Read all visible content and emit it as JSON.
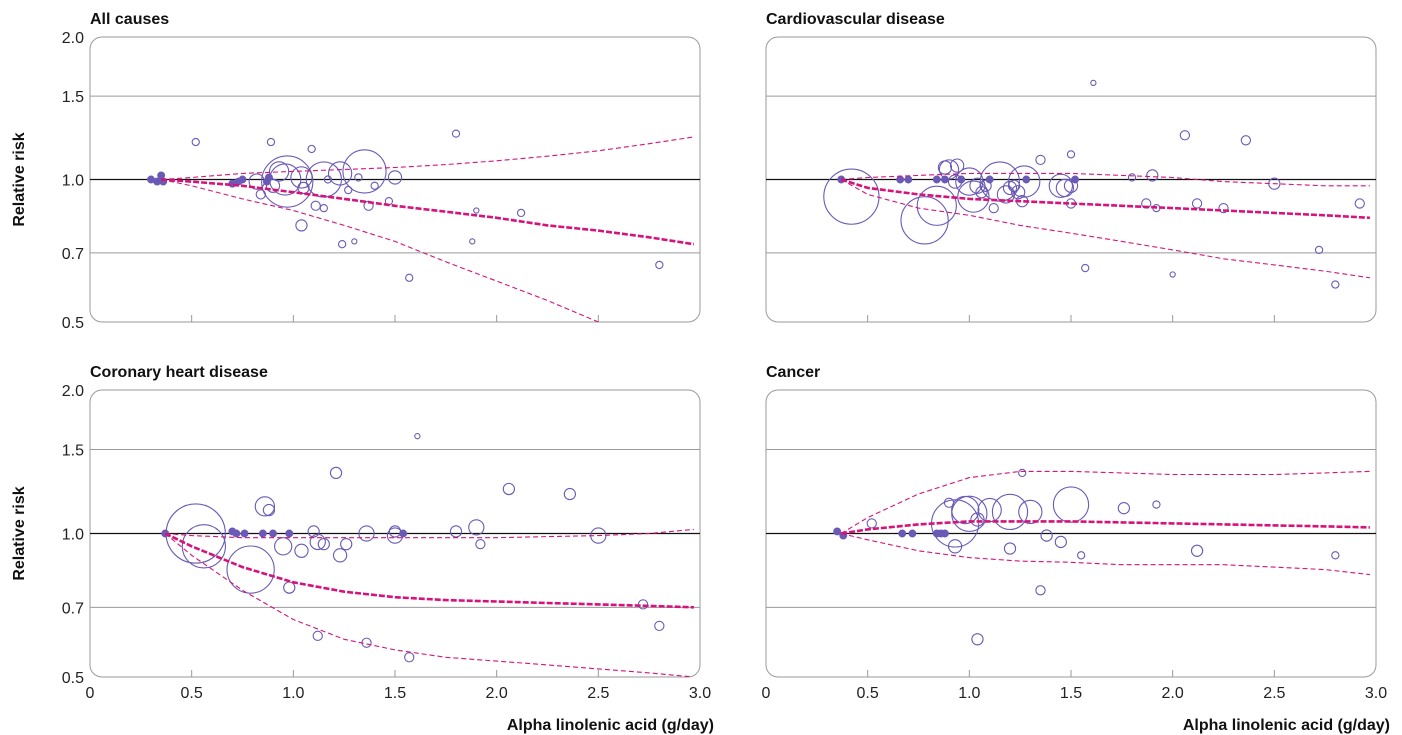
{
  "chart_data": [
    {
      "type": "scatter",
      "title": "All causes",
      "ylabel": "Relative risk",
      "xlabel": "",
      "xlim": [
        0,
        3.0
      ],
      "ylim": [
        0.5,
        2.0
      ],
      "y_scale": "log",
      "yticks": [
        0.5,
        0.7,
        1.0,
        1.5,
        2.0
      ],
      "ytick_labels": [
        "0.5",
        "0.7",
        "1.0",
        "1.5",
        "2.0"
      ],
      "xticks": [
        0.5,
        1.0,
        1.5,
        2.0,
        2.5
      ],
      "xtick_labels": [],
      "grid": true,
      "reference_line": 1.0,
      "points": [
        {
          "x": 0.3,
          "y": 1.0,
          "s": 2,
          "filled": true
        },
        {
          "x": 0.33,
          "y": 0.99,
          "s": 2,
          "filled": true
        },
        {
          "x": 0.35,
          "y": 1.02,
          "s": 2,
          "filled": true
        },
        {
          "x": 0.36,
          "y": 0.99,
          "s": 2,
          "filled": true
        },
        {
          "x": 0.52,
          "y": 1.2,
          "s": 2
        },
        {
          "x": 0.7,
          "y": 0.98,
          "s": 2,
          "filled": true
        },
        {
          "x": 0.73,
          "y": 0.99,
          "s": 2,
          "filled": true
        },
        {
          "x": 0.75,
          "y": 1.0,
          "s": 2,
          "filled": true
        },
        {
          "x": 0.82,
          "y": 0.99,
          "s": 6
        },
        {
          "x": 0.84,
          "y": 0.93,
          "s": 3
        },
        {
          "x": 0.87,
          "y": 0.99,
          "s": 2,
          "filled": true
        },
        {
          "x": 0.88,
          "y": 1.01,
          "s": 2,
          "filled": true
        },
        {
          "x": 0.89,
          "y": 1.2,
          "s": 2
        },
        {
          "x": 0.9,
          "y": 0.97,
          "s": 5
        },
        {
          "x": 0.93,
          "y": 1.04,
          "s": 8
        },
        {
          "x": 0.96,
          "y": 1.0,
          "s": 14
        },
        {
          "x": 0.97,
          "y": 0.99,
          "s": 24
        },
        {
          "x": 1.04,
          "y": 1.01,
          "s": 9
        },
        {
          "x": 1.04,
          "y": 0.8,
          "s": 4
        },
        {
          "x": 1.05,
          "y": 0.96,
          "s": 4
        },
        {
          "x": 1.09,
          "y": 1.16,
          "s": 2
        },
        {
          "x": 1.11,
          "y": 0.88,
          "s": 3
        },
        {
          "x": 1.15,
          "y": 1.0,
          "s": 16
        },
        {
          "x": 1.15,
          "y": 0.87,
          "s": 2
        },
        {
          "x": 1.17,
          "y": 1.0,
          "s": 2
        },
        {
          "x": 1.23,
          "y": 1.03,
          "s": 10
        },
        {
          "x": 1.24,
          "y": 0.73,
          "s": 2
        },
        {
          "x": 1.27,
          "y": 0.95,
          "s": 2
        },
        {
          "x": 1.3,
          "y": 0.74,
          "s": 1
        },
        {
          "x": 1.32,
          "y": 1.01,
          "s": 2
        },
        {
          "x": 1.35,
          "y": 1.04,
          "s": 20
        },
        {
          "x": 1.37,
          "y": 0.88,
          "s": 3
        },
        {
          "x": 1.4,
          "y": 0.97,
          "s": 2
        },
        {
          "x": 1.47,
          "y": 0.9,
          "s": 2
        },
        {
          "x": 1.5,
          "y": 1.01,
          "s": 5
        },
        {
          "x": 1.57,
          "y": 0.62,
          "s": 2
        },
        {
          "x": 1.8,
          "y": 1.25,
          "s": 2
        },
        {
          "x": 1.88,
          "y": 0.74,
          "s": 1
        },
        {
          "x": 1.9,
          "y": 0.86,
          "s": 1
        },
        {
          "x": 2.12,
          "y": 0.85,
          "s": 2
        },
        {
          "x": 2.8,
          "y": 0.66,
          "s": 2
        }
      ],
      "curves": {
        "x": [
          0.35,
          0.5,
          0.75,
          1.0,
          1.25,
          1.5,
          1.75,
          2.0,
          2.25,
          2.5,
          2.75,
          2.97
        ],
        "estimate": [
          1.0,
          0.99,
          0.97,
          0.94,
          0.91,
          0.88,
          0.855,
          0.83,
          0.8,
          0.78,
          0.755,
          0.73
        ],
        "lower": [
          1.0,
          0.97,
          0.91,
          0.86,
          0.8,
          0.74,
          0.67,
          0.61,
          0.555,
          0.5,
          0.46,
          0.42
        ],
        "upper": [
          1.0,
          1.01,
          1.03,
          1.04,
          1.05,
          1.06,
          1.075,
          1.095,
          1.12,
          1.15,
          1.19,
          1.23
        ]
      }
    },
    {
      "type": "scatter",
      "title": "Cardiovascular disease",
      "ylabel": "",
      "xlabel": "",
      "xlim": [
        0,
        3.0
      ],
      "ylim": [
        0.5,
        2.0
      ],
      "y_scale": "log",
      "yticks": [
        0.5,
        0.7,
        1.0,
        1.5,
        2.0
      ],
      "ytick_labels": [],
      "xticks": [
        0.5,
        1.0,
        1.5,
        2.0,
        2.5
      ],
      "xtick_labels": [],
      "grid": true,
      "reference_line": 1.0,
      "points": [
        {
          "x": 0.37,
          "y": 1.0,
          "s": 2,
          "filled": true
        },
        {
          "x": 0.42,
          "y": 0.92,
          "s": 26
        },
        {
          "x": 0.66,
          "y": 1.0,
          "s": 2,
          "filled": true
        },
        {
          "x": 0.7,
          "y": 1.0,
          "s": 2,
          "filled": true
        },
        {
          "x": 0.78,
          "y": 0.82,
          "s": 22
        },
        {
          "x": 0.84,
          "y": 0.88,
          "s": 18
        },
        {
          "x": 0.84,
          "y": 1.0,
          "s": 2,
          "filled": true
        },
        {
          "x": 0.88,
          "y": 1.06,
          "s": 5
        },
        {
          "x": 0.88,
          "y": 1.0,
          "s": 2,
          "filled": true
        },
        {
          "x": 0.9,
          "y": 1.05,
          "s": 8
        },
        {
          "x": 0.93,
          "y": 0.99,
          "s": 5
        },
        {
          "x": 0.94,
          "y": 1.07,
          "s": 5
        },
        {
          "x": 0.96,
          "y": 1.0,
          "s": 2,
          "filled": true
        },
        {
          "x": 1.0,
          "y": 0.99,
          "s": 12
        },
        {
          "x": 1.02,
          "y": 0.92,
          "s": 14
        },
        {
          "x": 1.04,
          "y": 0.97,
          "s": 6
        },
        {
          "x": 1.06,
          "y": 0.94,
          "s": 4
        },
        {
          "x": 1.08,
          "y": 0.97,
          "s": 4
        },
        {
          "x": 1.1,
          "y": 1.0,
          "s": 2,
          "filled": true
        },
        {
          "x": 1.12,
          "y": 0.87,
          "s": 3
        },
        {
          "x": 1.15,
          "y": 0.99,
          "s": 18
        },
        {
          "x": 1.18,
          "y": 0.93,
          "s": 7
        },
        {
          "x": 1.2,
          "y": 0.96,
          "s": 5
        },
        {
          "x": 1.22,
          "y": 0.97,
          "s": 4
        },
        {
          "x": 1.24,
          "y": 0.94,
          "s": 5
        },
        {
          "x": 1.26,
          "y": 0.9,
          "s": 4
        },
        {
          "x": 1.27,
          "y": 0.99,
          "s": 14
        },
        {
          "x": 1.28,
          "y": 1.0,
          "s": 2,
          "filled": true
        },
        {
          "x": 1.35,
          "y": 1.1,
          "s": 3
        },
        {
          "x": 1.45,
          "y": 0.97,
          "s": 10
        },
        {
          "x": 1.47,
          "y": 0.96,
          "s": 7
        },
        {
          "x": 1.5,
          "y": 0.97,
          "s": 5
        },
        {
          "x": 1.5,
          "y": 1.13,
          "s": 2
        },
        {
          "x": 1.5,
          "y": 0.89,
          "s": 3
        },
        {
          "x": 1.52,
          "y": 1.0,
          "s": 2,
          "filled": true
        },
        {
          "x": 1.57,
          "y": 0.65,
          "s": 2
        },
        {
          "x": 1.61,
          "y": 1.6,
          "s": 1
        },
        {
          "x": 1.8,
          "y": 1.01,
          "s": 2
        },
        {
          "x": 1.87,
          "y": 0.89,
          "s": 3
        },
        {
          "x": 1.9,
          "y": 1.02,
          "s": 4
        },
        {
          "x": 1.92,
          "y": 0.87,
          "s": 2
        },
        {
          "x": 2.0,
          "y": 0.63,
          "s": 1
        },
        {
          "x": 2.06,
          "y": 1.24,
          "s": 3
        },
        {
          "x": 2.12,
          "y": 0.89,
          "s": 3
        },
        {
          "x": 2.25,
          "y": 0.87,
          "s": 3
        },
        {
          "x": 2.36,
          "y": 1.21,
          "s": 3
        },
        {
          "x": 2.5,
          "y": 0.98,
          "s": 4
        },
        {
          "x": 2.72,
          "y": 0.71,
          "s": 2
        },
        {
          "x": 2.8,
          "y": 0.6,
          "s": 2
        },
        {
          "x": 2.92,
          "y": 0.89,
          "s": 3
        }
      ],
      "curves": {
        "x": [
          0.37,
          0.5,
          0.75,
          1.0,
          1.25,
          1.5,
          1.75,
          2.0,
          2.25,
          2.5,
          2.75,
          2.97
        ],
        "estimate": [
          1.0,
          0.96,
          0.93,
          0.91,
          0.9,
          0.89,
          0.88,
          0.87,
          0.86,
          0.85,
          0.84,
          0.83
        ],
        "lower": [
          1.0,
          0.93,
          0.87,
          0.84,
          0.8,
          0.77,
          0.74,
          0.71,
          0.68,
          0.66,
          0.64,
          0.62
        ],
        "upper": [
          1.0,
          1.01,
          1.02,
          1.03,
          1.03,
          1.03,
          1.02,
          1.01,
          0.99,
          0.98,
          0.97,
          0.97
        ]
      }
    },
    {
      "type": "scatter",
      "title": "Coronary heart disease",
      "ylabel": "Relative risk",
      "xlabel": "Alpha linolenic acid (g/day)",
      "xlim": [
        0,
        3.0
      ],
      "ylim": [
        0.5,
        2.0
      ],
      "y_scale": "log",
      "yticks": [
        0.5,
        0.7,
        1.0,
        1.5,
        2.0
      ],
      "ytick_labels": [
        "0.5",
        "0.7",
        "1.0",
        "1.5",
        "2.0"
      ],
      "xticks": [
        0,
        0.5,
        1.0,
        1.5,
        2.0,
        2.5,
        3.0
      ],
      "xtick_labels": [
        "0",
        "0.5",
        "1.0",
        "1.5",
        "2.0",
        "2.5",
        "3.0"
      ],
      "grid": true,
      "reference_line": 1.0,
      "points": [
        {
          "x": 0.37,
          "y": 1.0,
          "s": 2,
          "filled": true
        },
        {
          "x": 0.52,
          "y": 1.0,
          "s": 28
        },
        {
          "x": 0.56,
          "y": 0.94,
          "s": 20
        },
        {
          "x": 0.7,
          "y": 1.01,
          "s": 2,
          "filled": true
        },
        {
          "x": 0.72,
          "y": 1.0,
          "s": 2,
          "filled": true
        },
        {
          "x": 0.76,
          "y": 1.0,
          "s": 2,
          "filled": true
        },
        {
          "x": 0.79,
          "y": 0.84,
          "s": 22
        },
        {
          "x": 0.85,
          "y": 1.0,
          "s": 2,
          "filled": true
        },
        {
          "x": 0.86,
          "y": 1.14,
          "s": 8
        },
        {
          "x": 0.88,
          "y": 1.12,
          "s": 4
        },
        {
          "x": 0.9,
          "y": 1.0,
          "s": 2,
          "filled": true
        },
        {
          "x": 0.95,
          "y": 0.94,
          "s": 7
        },
        {
          "x": 0.98,
          "y": 0.77,
          "s": 4
        },
        {
          "x": 0.98,
          "y": 1.0,
          "s": 2,
          "filled": true
        },
        {
          "x": 1.04,
          "y": 0.92,
          "s": 5
        },
        {
          "x": 1.1,
          "y": 1.01,
          "s": 4
        },
        {
          "x": 1.12,
          "y": 0.96,
          "s": 6
        },
        {
          "x": 1.12,
          "y": 0.61,
          "s": 3
        },
        {
          "x": 1.15,
          "y": 0.95,
          "s": 4
        },
        {
          "x": 1.21,
          "y": 1.34,
          "s": 4
        },
        {
          "x": 1.23,
          "y": 0.9,
          "s": 5
        },
        {
          "x": 1.26,
          "y": 0.95,
          "s": 4
        },
        {
          "x": 1.36,
          "y": 1.0,
          "s": 6
        },
        {
          "x": 1.36,
          "y": 0.59,
          "s": 3
        },
        {
          "x": 1.5,
          "y": 1.01,
          "s": 4
        },
        {
          "x": 1.5,
          "y": 0.99,
          "s": 6
        },
        {
          "x": 1.54,
          "y": 1.0,
          "s": 2,
          "filled": true
        },
        {
          "x": 1.57,
          "y": 0.55,
          "s": 3
        },
        {
          "x": 1.61,
          "y": 1.6,
          "s": 1
        },
        {
          "x": 1.8,
          "y": 1.01,
          "s": 4
        },
        {
          "x": 1.9,
          "y": 1.03,
          "s": 6
        },
        {
          "x": 1.92,
          "y": 0.95,
          "s": 3
        },
        {
          "x": 2.06,
          "y": 1.24,
          "s": 4
        },
        {
          "x": 2.36,
          "y": 1.21,
          "s": 4
        },
        {
          "x": 2.5,
          "y": 0.99,
          "s": 6
        },
        {
          "x": 2.72,
          "y": 0.71,
          "s": 3
        },
        {
          "x": 2.8,
          "y": 0.64,
          "s": 3
        }
      ],
      "curves": {
        "x": [
          0.37,
          0.5,
          0.75,
          1.0,
          1.25,
          1.5,
          1.75,
          2.0,
          2.25,
          2.5,
          2.75,
          2.97
        ],
        "estimate": [
          1.0,
          0.94,
          0.85,
          0.79,
          0.755,
          0.735,
          0.725,
          0.72,
          0.715,
          0.71,
          0.705,
          0.7
        ],
        "lower": [
          1.0,
          0.9,
          0.76,
          0.66,
          0.6,
          0.57,
          0.55,
          0.54,
          0.53,
          0.52,
          0.51,
          0.5
        ],
        "upper": [
          1.0,
          0.99,
          0.98,
          0.98,
          0.98,
          0.98,
          0.98,
          0.98,
          0.985,
          0.99,
          1.0,
          1.02
        ]
      }
    },
    {
      "type": "scatter",
      "title": "Cancer",
      "ylabel": "",
      "xlabel": "Alpha linolenic acid (g/day)",
      "xlim": [
        0,
        3.0
      ],
      "ylim": [
        0.5,
        2.0
      ],
      "y_scale": "log",
      "yticks": [
        0.5,
        0.7,
        1.0,
        1.5,
        2.0
      ],
      "ytick_labels": [],
      "xticks": [
        0,
        0.5,
        1.0,
        1.5,
        2.0,
        2.5,
        3.0
      ],
      "xtick_labels": [
        "0",
        "0.5",
        "1.0",
        "1.5",
        "2.0",
        "2.5",
        "3.0"
      ],
      "grid": true,
      "reference_line": 1.0,
      "points": [
        {
          "x": 0.35,
          "y": 1.01,
          "s": 2,
          "filled": true
        },
        {
          "x": 0.38,
          "y": 0.99,
          "s": 2,
          "filled": true
        },
        {
          "x": 0.52,
          "y": 1.05,
          "s": 3
        },
        {
          "x": 0.67,
          "y": 1.0,
          "s": 2,
          "filled": true
        },
        {
          "x": 0.72,
          "y": 1.0,
          "s": 2,
          "filled": true
        },
        {
          "x": 0.84,
          "y": 1.0,
          "s": 2,
          "filled": true
        },
        {
          "x": 0.86,
          "y": 1.0,
          "s": 2,
          "filled": true
        },
        {
          "x": 0.88,
          "y": 1.0,
          "s": 2,
          "filled": true
        },
        {
          "x": 0.9,
          "y": 1.16,
          "s": 3
        },
        {
          "x": 0.93,
          "y": 1.05,
          "s": 22
        },
        {
          "x": 0.93,
          "y": 0.94,
          "s": 5
        },
        {
          "x": 0.98,
          "y": 1.12,
          "s": 12
        },
        {
          "x": 1.0,
          "y": 1.1,
          "s": 16
        },
        {
          "x": 1.04,
          "y": 1.07,
          "s": 5
        },
        {
          "x": 1.04,
          "y": 0.6,
          "s": 4
        },
        {
          "x": 1.1,
          "y": 1.12,
          "s": 10
        },
        {
          "x": 1.2,
          "y": 1.11,
          "s": 16
        },
        {
          "x": 1.2,
          "y": 0.93,
          "s": 4
        },
        {
          "x": 1.26,
          "y": 1.34,
          "s": 2
        },
        {
          "x": 1.3,
          "y": 1.11,
          "s": 10
        },
        {
          "x": 1.35,
          "y": 0.76,
          "s": 3
        },
        {
          "x": 1.38,
          "y": 0.99,
          "s": 4
        },
        {
          "x": 1.45,
          "y": 0.96,
          "s": 4
        },
        {
          "x": 1.5,
          "y": 1.15,
          "s": 16
        },
        {
          "x": 1.55,
          "y": 0.9,
          "s": 2
        },
        {
          "x": 1.76,
          "y": 1.13,
          "s": 4
        },
        {
          "x": 1.92,
          "y": 1.15,
          "s": 2
        },
        {
          "x": 2.12,
          "y": 0.92,
          "s": 4
        },
        {
          "x": 2.8,
          "y": 0.9,
          "s": 2
        }
      ],
      "curves": {
        "x": [
          0.37,
          0.5,
          0.75,
          1.0,
          1.25,
          1.5,
          1.75,
          2.0,
          2.25,
          2.5,
          2.75,
          2.97
        ],
        "estimate": [
          1.0,
          1.02,
          1.045,
          1.06,
          1.06,
          1.06,
          1.055,
          1.05,
          1.045,
          1.04,
          1.035,
          1.03
        ],
        "lower": [
          1.0,
          0.97,
          0.92,
          0.89,
          0.875,
          0.87,
          0.86,
          0.86,
          0.86,
          0.85,
          0.84,
          0.82
        ],
        "upper": [
          1.0,
          1.08,
          1.21,
          1.31,
          1.35,
          1.35,
          1.34,
          1.33,
          1.33,
          1.33,
          1.34,
          1.35
        ]
      }
    }
  ]
}
